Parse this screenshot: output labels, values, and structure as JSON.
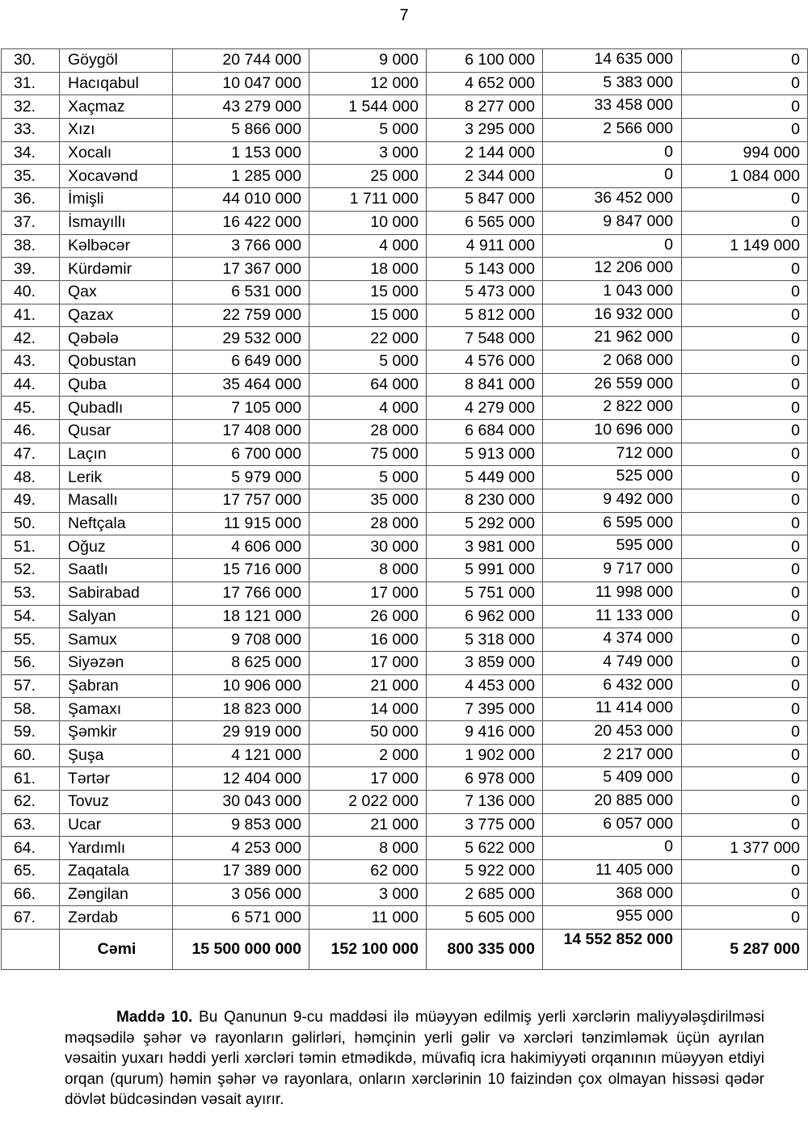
{
  "page_number": "7",
  "table": {
    "rows": [
      [
        "30.",
        "Göygöl",
        "20 744 000",
        "9 000",
        "6 100 000",
        "14 635 000",
        "0"
      ],
      [
        "31.",
        "Hacıqabul",
        "10 047 000",
        "12 000",
        "4 652 000",
        "5 383 000",
        "0"
      ],
      [
        "32.",
        "Xaçmaz",
        "43 279 000",
        "1 544 000",
        "8 277 000",
        "33 458 000",
        "0"
      ],
      [
        "33.",
        "Xızı",
        "5 866 000",
        "5 000",
        "3 295 000",
        "2 566 000",
        "0"
      ],
      [
        "34.",
        "Xocalı",
        "1 153 000",
        "3 000",
        "2 144 000",
        "0",
        "994 000"
      ],
      [
        "35.",
        "Xocavənd",
        "1 285 000",
        "25 000",
        "2 344 000",
        "0",
        "1 084 000"
      ],
      [
        "36.",
        "İmişli",
        "44 010 000",
        "1 711 000",
        "5 847 000",
        "36 452 000",
        "0"
      ],
      [
        "37.",
        "İsmayıllı",
        "16 422 000",
        "10 000",
        "6 565 000",
        "9 847 000",
        "0"
      ],
      [
        "38.",
        "Kəlbəcər",
        "3 766 000",
        "4 000",
        "4 911 000",
        "0",
        "1 149 000"
      ],
      [
        "39.",
        "Kürdəmir",
        "17 367 000",
        "18 000",
        "5 143 000",
        "12 206 000",
        "0"
      ],
      [
        "40.",
        "Qax",
        "6 531 000",
        "15 000",
        "5 473 000",
        "1 043 000",
        "0"
      ],
      [
        "41.",
        "Qazax",
        "22 759 000",
        "15 000",
        "5 812 000",
        "16 932 000",
        "0"
      ],
      [
        "42.",
        "Qəbələ",
        "29 532 000",
        "22 000",
        "7 548 000",
        "21 962 000",
        "0"
      ],
      [
        "43.",
        "Qobustan",
        "6 649 000",
        "5 000",
        "4 576 000",
        "2 068 000",
        "0"
      ],
      [
        "44.",
        "Quba",
        "35 464 000",
        "64 000",
        "8 841 000",
        "26 559 000",
        "0"
      ],
      [
        "45.",
        "Qubadlı",
        "7 105 000",
        "4 000",
        "4 279 000",
        "2 822 000",
        "0"
      ],
      [
        "46.",
        "Qusar",
        "17 408 000",
        "28 000",
        "6 684 000",
        "10 696 000",
        "0"
      ],
      [
        "47.",
        "Laçın",
        "6 700 000",
        "75 000",
        "5 913 000",
        "712 000",
        "0"
      ],
      [
        "48.",
        "Lerik",
        "5 979 000",
        "5 000",
        "5 449 000",
        "525 000",
        "0"
      ],
      [
        "49.",
        "Masallı",
        "17 757 000",
        "35 000",
        "8 230 000",
        "9 492 000",
        "0"
      ],
      [
        "50.",
        "Neftçala",
        "11 915 000",
        "28 000",
        "5 292 000",
        "6 595 000",
        "0"
      ],
      [
        "51.",
        "Oğuz",
        "4 606 000",
        "30 000",
        "3 981 000",
        "595 000",
        "0"
      ],
      [
        "52.",
        "Saatlı",
        "15 716 000",
        "8 000",
        "5 991 000",
        "9 717 000",
        "0"
      ],
      [
        "53.",
        "Sabirabad",
        "17 766 000",
        "17 000",
        "5 751 000",
        "11 998 000",
        "0"
      ],
      [
        "54.",
        "Salyan",
        "18 121 000",
        "26 000",
        "6 962 000",
        "11 133 000",
        "0"
      ],
      [
        "55.",
        "Samux",
        "9 708 000",
        "16 000",
        "5 318 000",
        "4 374 000",
        "0"
      ],
      [
        "56.",
        "Siyəzən",
        "8 625 000",
        "17 000",
        "3 859 000",
        "4 749 000",
        "0"
      ],
      [
        "57.",
        "Şabran",
        "10 906 000",
        "21 000",
        "4 453 000",
        "6 432 000",
        "0"
      ],
      [
        "58.",
        "Şamaxı",
        "18 823 000",
        "14 000",
        "7 395 000",
        "11 414 000",
        "0"
      ],
      [
        "59.",
        "Şəmkir",
        "29 919 000",
        "50 000",
        "9 416 000",
        "20 453 000",
        "0"
      ],
      [
        "60.",
        "Şuşa",
        "4 121 000",
        "2 000",
        "1 902 000",
        "2 217 000",
        "0"
      ],
      [
        "61.",
        "Tərtər",
        "12 404 000",
        "17 000",
        "6 978 000",
        "5 409 000",
        "0"
      ],
      [
        "62.",
        "Tovuz",
        "30 043 000",
        "2 022 000",
        "7 136 000",
        "20 885 000",
        "0"
      ],
      [
        "63.",
        "Ucar",
        "9 853 000",
        "21 000",
        "3 775 000",
        "6 057 000",
        "0"
      ],
      [
        "64.",
        "Yardımlı",
        "4 253 000",
        "8 000",
        "5 622 000",
        "0",
        "1 377 000"
      ],
      [
        "65.",
        "Zaqatala",
        "17 389 000",
        "62 000",
        "5 922 000",
        "11 405 000",
        "0"
      ],
      [
        "66.",
        "Zəngilan",
        "3 056 000",
        "3 000",
        "2 685 000",
        "368 000",
        "0"
      ],
      [
        "67.",
        "Zərdab",
        "6 571 000",
        "11 000",
        "5 605 000",
        "955 000",
        "0"
      ]
    ],
    "total": [
      "",
      "Cəmi",
      "15 500 000 000",
      "152 100 000",
      "800 335 000",
      "14 552 852 000",
      "5 287 000"
    ]
  },
  "article": {
    "lead": "Maddə 10.",
    "text": " Bu Qanunun 9-cu maddəsi ilə müəyyən edilmiş yerli xərclərin maliyyələşdirilməsi məqsədilə şəhər və rayonların gəlirləri, həmçinin yerli gəlir və xərcləri tənzimləmək üçün ayrılan vəsaitin yuxarı həddi yerli xərcləri təmin etmədikdə, müvafiq icra hakimiyyəti orqanının müəyyən etdiyi orqan (qurum) həmin şəhər və rayonlara, onların xərclərinin 10 faizindən çox olmayan hissəsi qədər dövlət büdcəsindən vəsait ayırır."
  }
}
